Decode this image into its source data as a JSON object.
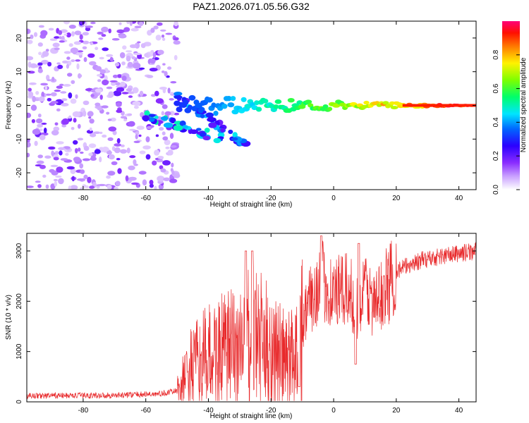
{
  "title": "PAZ1.2026.071.05.56.G32",
  "chart_data": [
    {
      "type": "heatmap",
      "xlabel": "Height of straight line (km)",
      "ylabel": "Frequency (Hz)",
      "xlim": [
        -98,
        45.5
      ],
      "ylim": [
        -25,
        25
      ],
      "xticks": [
        -80,
        -60,
        -40,
        -20,
        0,
        20,
        40
      ],
      "yticks": [
        -20,
        -10,
        0,
        10,
        20
      ],
      "colorbar": {
        "label": "Normalized spectral amplitude",
        "range": [
          0,
          1
        ],
        "ticks": [
          0.0,
          0.2,
          0.4,
          0.6,
          0.8
        ],
        "tick_labels": [
          "0.0",
          "0.2",
          "0.4",
          "0.6",
          "0.8"
        ],
        "colors": [
          "#ffffff",
          "#b070ff",
          "#6a00ff",
          "#0000ff",
          "#00bfff",
          "#00ff80",
          "#80ff00",
          "#ffff00",
          "#ff8000",
          "#ff0000",
          "#ff0090"
        ]
      },
      "features": {
        "noise_region_x": [
          -98,
          -50
        ],
        "noise_amplitude": 0.15,
        "main_tone": {
          "x_start": -50,
          "x_end": 45.5,
          "freq": 0,
          "amp_start": 0.3,
          "amp_end": 1.0
        },
        "branches": [
          {
            "x_start": -60,
            "x_end": -35,
            "freq_start": -3,
            "freq_end": -10,
            "amp": 0.35
          },
          {
            "x_start": -50,
            "x_end": -28,
            "freq_start": 3,
            "freq_end": -12,
            "amp": 0.3
          }
        ]
      }
    },
    {
      "type": "line",
      "xlabel": "Height of straight line (km)",
      "ylabel": "SNR (10 * v/v)",
      "xlim": [
        -98,
        45.5
      ],
      "ylim": [
        0,
        3350
      ],
      "xticks": [
        -80,
        -60,
        -40,
        -20,
        0,
        20,
        40
      ],
      "yticks": [
        0,
        1000,
        2000,
        3000
      ],
      "color": "#e8292b",
      "envelope": [
        {
          "x": -98,
          "y": 120
        },
        {
          "x": -70,
          "y": 130
        },
        {
          "x": -55,
          "y": 160
        },
        {
          "x": -50,
          "y": 220
        },
        {
          "x": -46,
          "y": 650
        },
        {
          "x": -40,
          "y": 900
        },
        {
          "x": -30,
          "y": 1100
        },
        {
          "x": -26,
          "y": 1300
        },
        {
          "x": -20,
          "y": 1050
        },
        {
          "x": -15,
          "y": 800
        },
        {
          "x": -11,
          "y": 1100
        },
        {
          "x": -9,
          "y": 1800
        },
        {
          "x": -6,
          "y": 2200
        },
        {
          "x": -4,
          "y": 2400
        },
        {
          "x": 0,
          "y": 2150
        },
        {
          "x": 5,
          "y": 2200
        },
        {
          "x": 8,
          "y": 1800
        },
        {
          "x": 10,
          "y": 2300
        },
        {
          "x": 13,
          "y": 1900
        },
        {
          "x": 17,
          "y": 2300
        },
        {
          "x": 20,
          "y": 2600
        },
        {
          "x": 25,
          "y": 2750
        },
        {
          "x": 30,
          "y": 2850
        },
        {
          "x": 35,
          "y": 2900
        },
        {
          "x": 40,
          "y": 2950
        },
        {
          "x": 45.5,
          "y": 3000
        }
      ],
      "spikes": [
        {
          "x": -28,
          "y": 3000
        },
        {
          "x": -26,
          "y": 3000
        },
        {
          "x": -4,
          "y": 3300
        },
        {
          "x": 8,
          "y": 3150
        },
        {
          "x": 7,
          "y": 750
        },
        {
          "x": -11,
          "y": 300
        }
      ]
    }
  ]
}
